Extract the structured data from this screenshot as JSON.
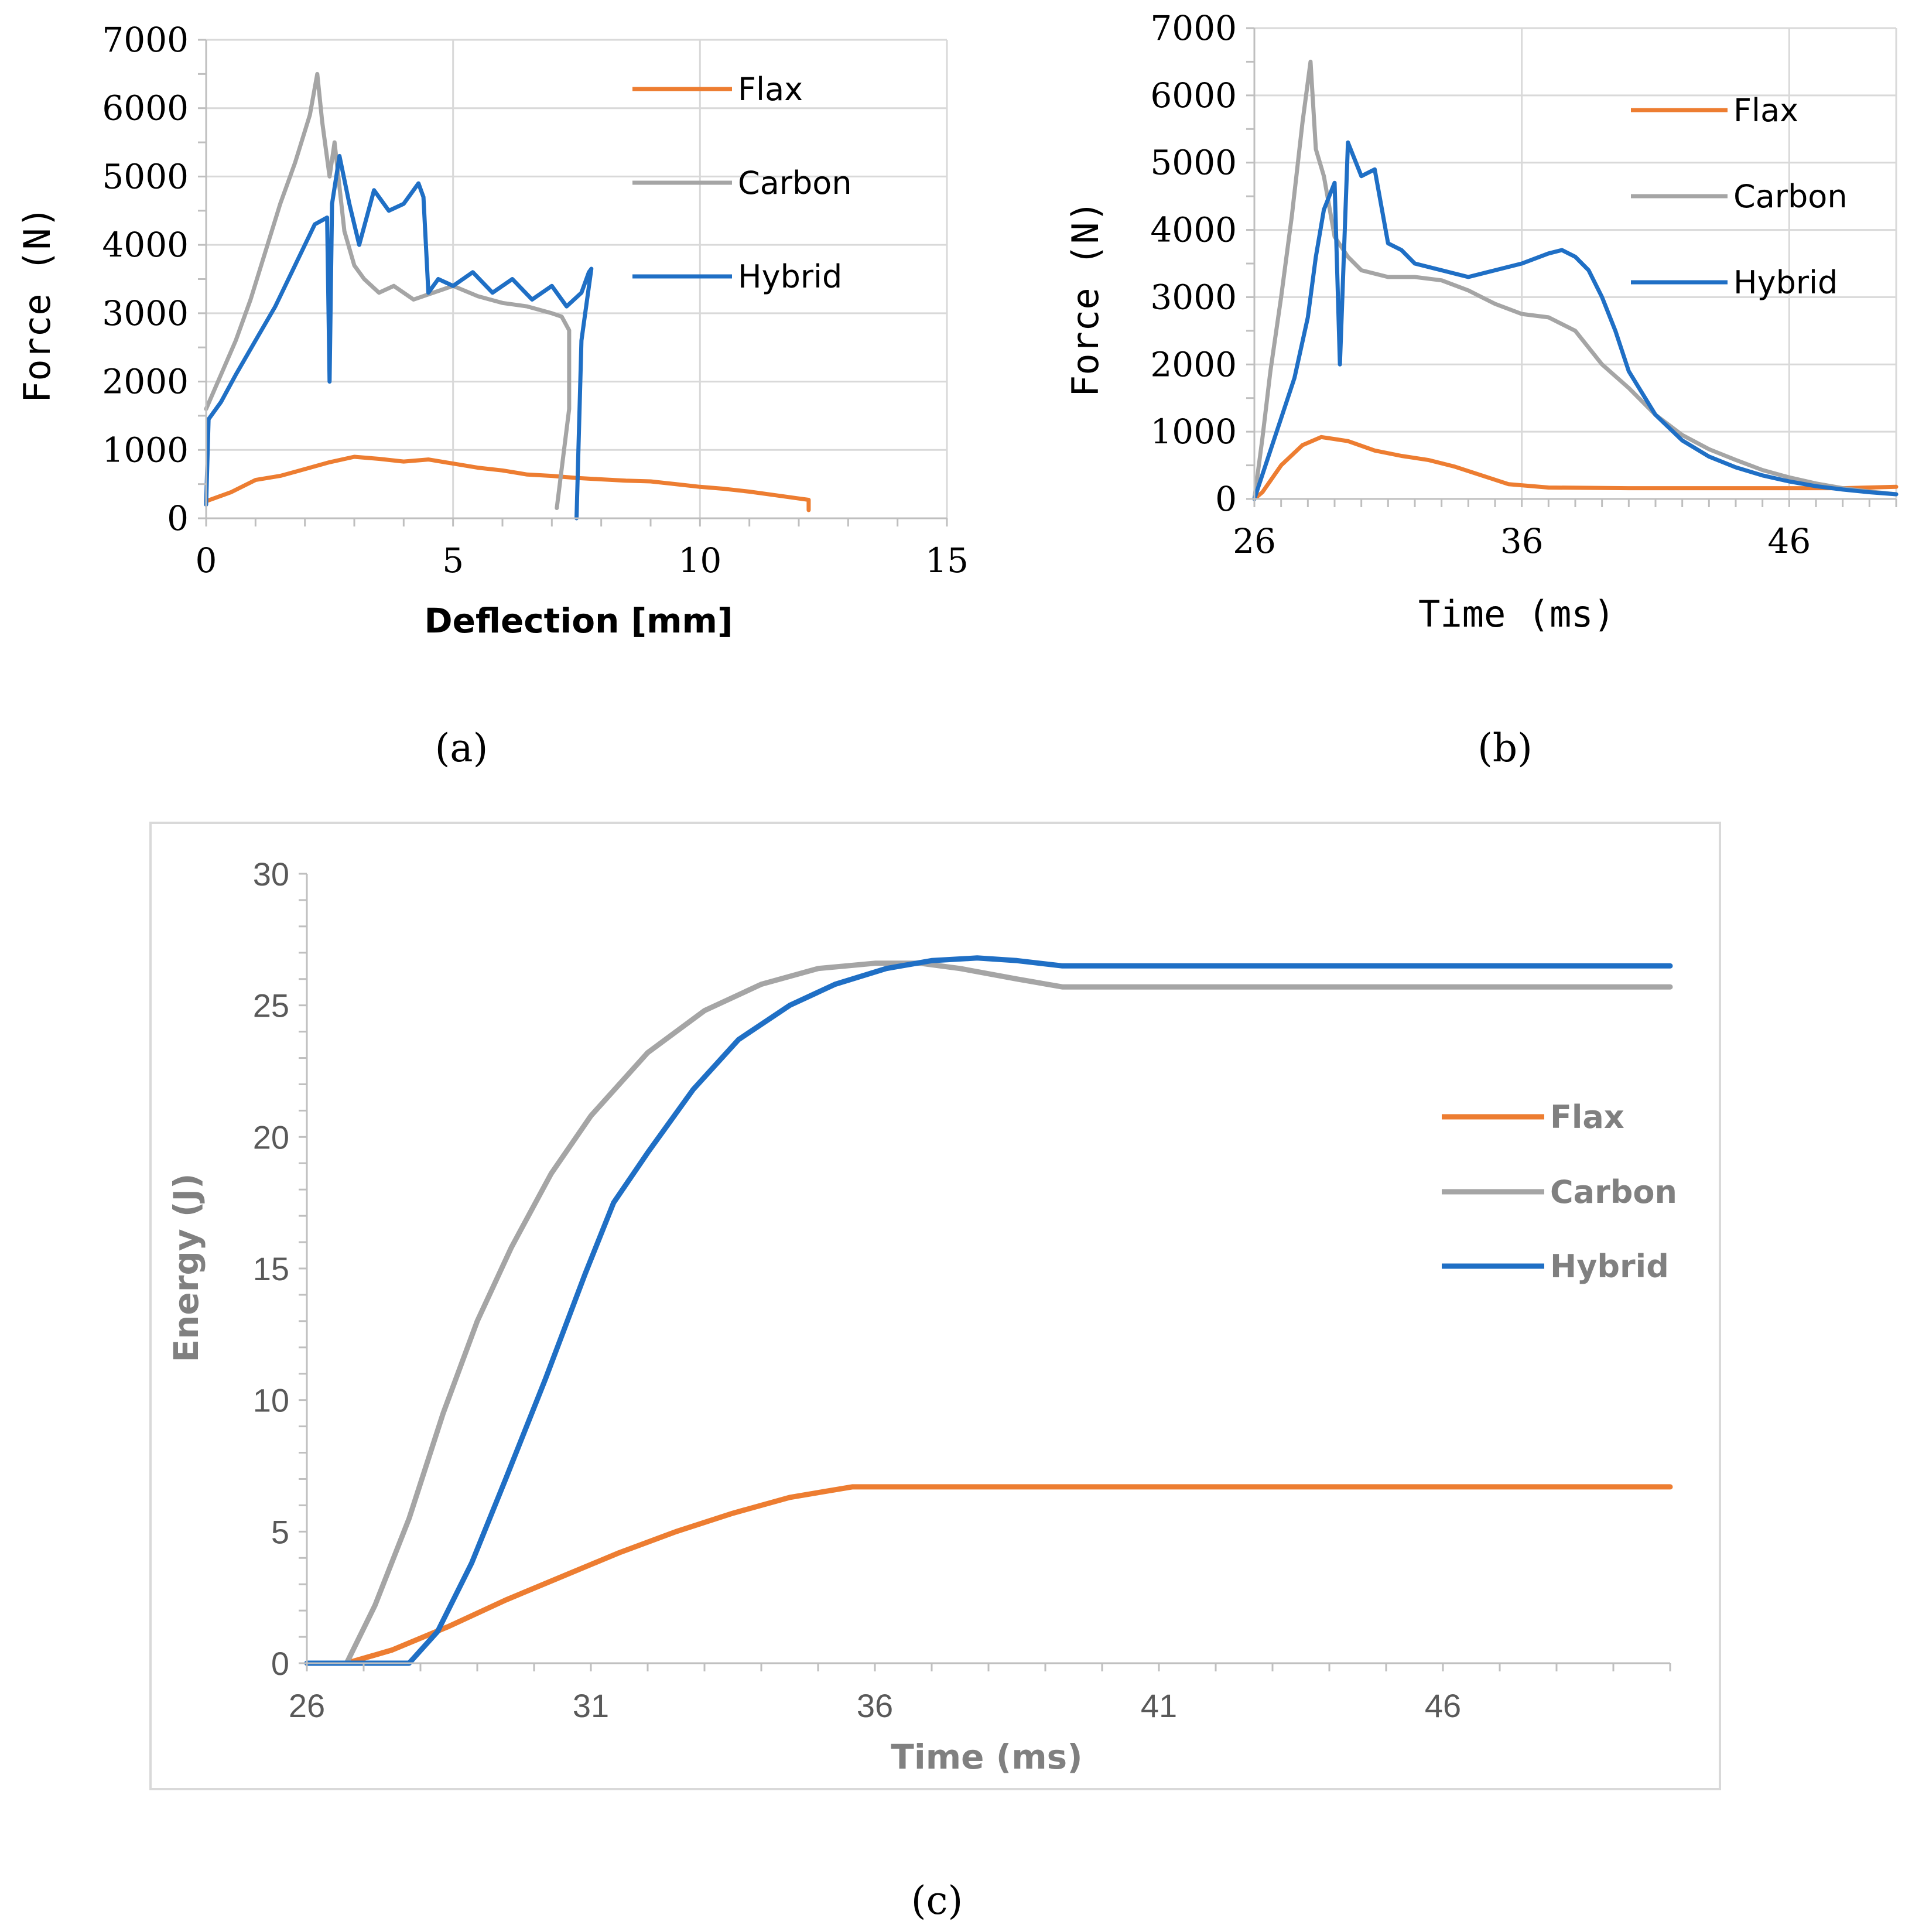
{
  "chart_data": [
    {
      "id": "a",
      "panel_label": "(a)",
      "type": "line",
      "xlabel": "Deflection [mm]",
      "ylabel": "Force (N)",
      "xlim": [
        0,
        15
      ],
      "ylim": [
        0,
        7000
      ],
      "x_ticks": [
        0,
        5,
        10,
        15
      ],
      "y_ticks": [
        0,
        1000,
        2000,
        3000,
        4000,
        5000,
        6000,
        7000
      ],
      "grid": true,
      "legend_position": "top-right",
      "series": [
        {
          "name": "Flax",
          "color": "#ED7D31",
          "x": [
            0,
            0.5,
            1,
            1.5,
            2,
            2.5,
            3,
            3.5,
            4,
            4.5,
            5,
            5.5,
            6,
            6.5,
            7,
            7.5,
            8,
            8.5,
            9,
            9.5,
            10,
            10.5,
            11,
            11.5,
            12,
            12.2,
            12.2
          ],
          "y": [
            250,
            380,
            560,
            620,
            720,
            820,
            900,
            870,
            830,
            860,
            800,
            740,
            700,
            640,
            620,
            590,
            570,
            550,
            540,
            500,
            460,
            430,
            390,
            340,
            290,
            270,
            120
          ]
        },
        {
          "name": "Carbon",
          "color": "#A5A5A5",
          "x": [
            0,
            0.3,
            0.6,
            0.9,
            1.2,
            1.5,
            1.8,
            2.1,
            2.25,
            2.35,
            2.5,
            2.6,
            2.8,
            3.0,
            3.2,
            3.5,
            3.8,
            4.2,
            4.6,
            5.0,
            5.5,
            6.0,
            6.5,
            7.0,
            7.2,
            7.35,
            7.35,
            7.1
          ],
          "y": [
            1600,
            2100,
            2600,
            3200,
            3900,
            4600,
            5200,
            5900,
            6500,
            5800,
            5000,
            5500,
            4200,
            3700,
            3500,
            3300,
            3400,
            3200,
            3300,
            3400,
            3250,
            3150,
            3100,
            3000,
            2950,
            2750,
            1600,
            150
          ]
        },
        {
          "name": "Hybrid",
          "color": "#1F6FC5",
          "x": [
            0,
            0.05,
            0.3,
            0.6,
            1.0,
            1.4,
            1.8,
            2.2,
            2.45,
            2.5,
            2.55,
            2.7,
            2.9,
            3.1,
            3.4,
            3.7,
            4.0,
            4.3,
            4.4,
            4.5,
            4.7,
            5.0,
            5.4,
            5.8,
            6.2,
            6.6,
            7.0,
            7.3,
            7.6,
            7.75,
            7.8,
            7.6,
            7.5
          ],
          "y": [
            200,
            1450,
            1700,
            2100,
            2600,
            3100,
            3700,
            4300,
            4400,
            2000,
            4600,
            5300,
            4600,
            4000,
            4800,
            4500,
            4600,
            4900,
            4700,
            3300,
            3500,
            3400,
            3600,
            3300,
            3500,
            3200,
            3400,
            3100,
            3300,
            3600,
            3650,
            2600,
            0
          ]
        }
      ]
    },
    {
      "id": "b",
      "panel_label": "(b)",
      "type": "line",
      "xlabel": "Time (ms)",
      "ylabel": "Force (N)",
      "xlim": [
        26,
        50
      ],
      "ylim": [
        0,
        7000
      ],
      "x_ticks": [
        26,
        36,
        46
      ],
      "y_ticks": [
        0,
        1000,
        2000,
        3000,
        4000,
        5000,
        6000,
        7000
      ],
      "grid": true,
      "legend_position": "top-right",
      "series": [
        {
          "name": "Flax",
          "color": "#ED7D31",
          "x": [
            26,
            26.3,
            27,
            27.8,
            28.5,
            29.5,
            30.5,
            31.5,
            32.5,
            33.5,
            34.5,
            35.5,
            37,
            40,
            44,
            48,
            50
          ],
          "y": [
            0,
            100,
            500,
            800,
            920,
            860,
            720,
            640,
            580,
            480,
            350,
            220,
            170,
            160,
            160,
            160,
            180
          ]
        },
        {
          "name": "Carbon",
          "color": "#A5A5A5",
          "x": [
            26,
            26.3,
            26.6,
            27.0,
            27.4,
            27.8,
            28.1,
            28.3,
            28.6,
            29.0,
            29.5,
            30.0,
            31,
            32,
            33,
            34,
            35,
            36,
            37,
            38,
            39,
            40,
            41,
            42,
            43,
            44,
            45,
            46,
            47,
            48,
            49,
            50
          ],
          "y": [
            0,
            900,
            1900,
            3000,
            4200,
            5600,
            6500,
            5200,
            4800,
            3900,
            3600,
            3400,
            3300,
            3300,
            3250,
            3100,
            2900,
            2750,
            2700,
            2500,
            2000,
            1650,
            1250,
            950,
            740,
            580,
            430,
            320,
            230,
            160,
            110,
            70
          ]
        },
        {
          "name": "Hybrid",
          "color": "#1F6FC5",
          "x": [
            26,
            26.5,
            27.0,
            27.5,
            28.0,
            28.3,
            28.6,
            29.0,
            29.2,
            29.5,
            30.0,
            30.5,
            31,
            31.5,
            32,
            33,
            34,
            35,
            36,
            37,
            37.5,
            38,
            38.5,
            39,
            39.5,
            40,
            41,
            42,
            43,
            44,
            45,
            46,
            47,
            48,
            49,
            50
          ],
          "y": [
            0,
            600,
            1200,
            1800,
            2700,
            3600,
            4300,
            4700,
            2000,
            5300,
            4800,
            4900,
            3800,
            3700,
            3500,
            3400,
            3300,
            3400,
            3500,
            3650,
            3700,
            3600,
            3400,
            3000,
            2500,
            1900,
            1250,
            870,
            630,
            470,
            350,
            260,
            190,
            140,
            100,
            70
          ]
        }
      ]
    },
    {
      "id": "c",
      "panel_label": "(c)",
      "type": "line",
      "xlabel": "Time (ms)",
      "ylabel": "Energy (J)",
      "xlim": [
        26,
        50
      ],
      "ylim": [
        0,
        30
      ],
      "x_ticks": [
        26,
        31,
        36,
        41,
        46
      ],
      "y_ticks": [
        0,
        5,
        10,
        15,
        20,
        25,
        30
      ],
      "grid": false,
      "legend_position": "right",
      "series": [
        {
          "name": "Flax",
          "color": "#ED7D31",
          "x": [
            26,
            26.7,
            27.5,
            28.5,
            29.5,
            30.5,
            31.5,
            32.5,
            33.5,
            34.5,
            35.6,
            50
          ],
          "y": [
            0,
            0,
            0.5,
            1.4,
            2.4,
            3.3,
            4.2,
            5.0,
            5.7,
            6.3,
            6.7,
            6.7
          ]
        },
        {
          "name": "Carbon",
          "color": "#A5A5A5",
          "x": [
            26,
            26.7,
            27.2,
            27.8,
            28.4,
            29.0,
            29.6,
            30.3,
            31.0,
            32.0,
            33.0,
            34.0,
            35.0,
            36.0,
            36.8,
            37.5,
            38.5,
            39.3,
            50
          ],
          "y": [
            0,
            0,
            2.2,
            5.5,
            9.5,
            13.0,
            15.8,
            18.6,
            20.8,
            23.2,
            24.8,
            25.8,
            26.4,
            26.6,
            26.6,
            26.4,
            26.0,
            25.7,
            25.7
          ]
        },
        {
          "name": "Hybrid",
          "color": "#1F6FC5",
          "x": [
            26,
            27.8,
            28.3,
            28.9,
            29.5,
            30.2,
            30.9,
            31.4,
            32.0,
            32.8,
            33.6,
            34.5,
            35.3,
            36.2,
            37.0,
            37.8,
            38.5,
            39.3,
            50
          ],
          "y": [
            0,
            0,
            1.2,
            3.8,
            7.0,
            10.8,
            14.8,
            17.5,
            19.4,
            21.8,
            23.7,
            25.0,
            25.8,
            26.4,
            26.7,
            26.8,
            26.7,
            26.5,
            26.5
          ]
        }
      ]
    }
  ]
}
